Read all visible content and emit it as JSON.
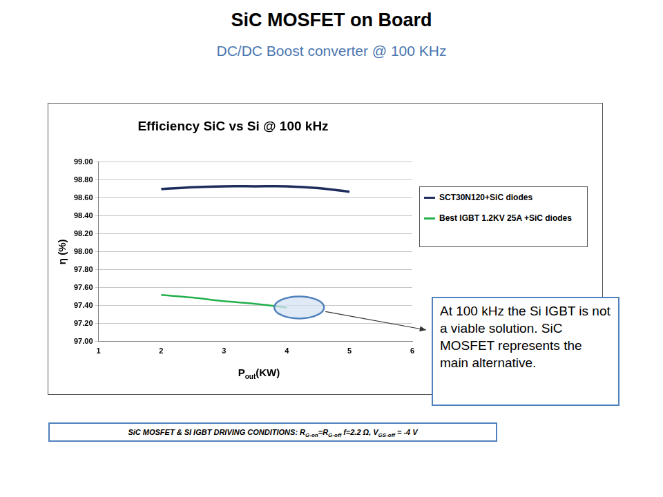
{
  "header": {
    "title": "SiC MOSFET on Board",
    "subtitle": "DC/DC Boost converter @ 100 KHz"
  },
  "chart_data": {
    "type": "line",
    "title": "Efficiency SiC vs Si @ 100 kHz",
    "x_label": [
      {
        "text": "P",
        "sub": false
      },
      {
        "text": "out",
        "sub": true
      },
      {
        "text": "(KW)",
        "sub": false
      }
    ],
    "y_label": "η (%)",
    "x": [
      2,
      2.5,
      3,
      3.5,
      4,
      4.5,
      5
    ],
    "series": [
      {
        "name": "SCT30N120+SiC diodes",
        "color": "#1f2d5e",
        "values": [
          98.7,
          98.72,
          98.73,
          98.73,
          98.73,
          98.71,
          98.67
        ]
      },
      {
        "name": "Best IGBT 1.2KV 25A +SiC diodes",
        "color": "#22b04b",
        "values": [
          97.52,
          97.49,
          97.45,
          97.42,
          97.38,
          null,
          null
        ]
      }
    ],
    "xlim": [
      1,
      6
    ],
    "xticks": [
      1,
      2,
      3,
      4,
      5,
      6
    ],
    "ylim": [
      97,
      99
    ],
    "yticks": [
      {
        "value": 97,
        "label": "97.00"
      },
      {
        "value": 97.2,
        "label": "97.20"
      },
      {
        "value": 97.4,
        "label": "97.40"
      },
      {
        "value": 97.6,
        "label": "97.60"
      },
      {
        "value": 97.8,
        "label": "97.80"
      },
      {
        "value": 98,
        "label": "98.00"
      },
      {
        "value": 98.2,
        "label": "98.20"
      },
      {
        "value": 98.4,
        "label": "98.40"
      },
      {
        "value": 98.6,
        "label": "98.60"
      },
      {
        "value": 98.8,
        "label": "98.80"
      },
      {
        "value": 99,
        "label": "99.00"
      }
    ],
    "grid": true,
    "legend": "right",
    "annotation": "At 100 kHz the Si IGBT is not a viable solution. SiC MOSFET represents the main alternative."
  },
  "footer": [
    {
      "text": "SiC MOSFET & SI IGBT DRIVING CONDITIONS: R",
      "sub": false
    },
    {
      "text": "G-on",
      "sub": true
    },
    {
      "text": "=R",
      "sub": false
    },
    {
      "text": "G-off",
      "sub": true
    },
    {
      "text": " f=2.2 Ω, V",
      "sub": false
    },
    {
      "text": "GS-off",
      "sub": true
    },
    {
      "text": " = -4 V",
      "sub": false
    }
  ]
}
